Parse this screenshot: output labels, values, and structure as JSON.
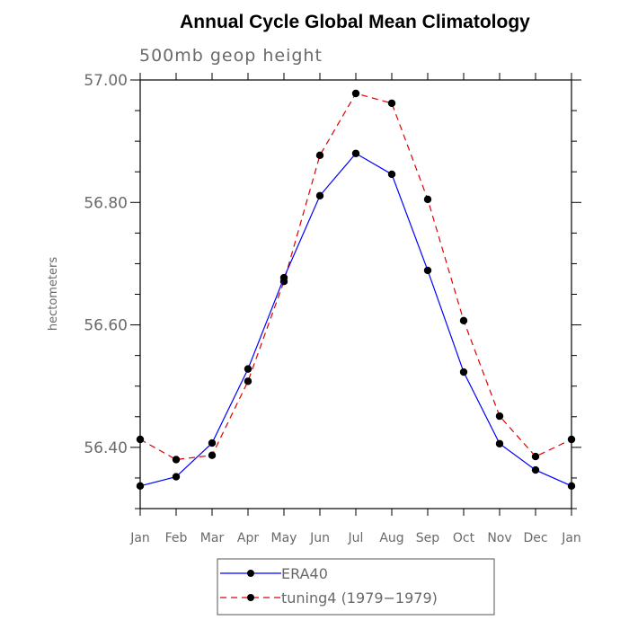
{
  "chart_data": {
    "type": "line",
    "title": "Annual Cycle Global Mean Climatology",
    "subtitle": "500mb geop height",
    "xlabel": "",
    "ylabel": "hectometers",
    "categories": [
      "Jan",
      "Feb",
      "Mar",
      "Apr",
      "May",
      "Jun",
      "Jul",
      "Aug",
      "Sep",
      "Oct",
      "Nov",
      "Dec",
      "Jan"
    ],
    "ylim": [
      56.3,
      57.0
    ],
    "yticks": [
      56.4,
      56.6,
      56.8,
      57.0
    ],
    "ytick_labels": [
      "56.40",
      "56.60",
      "56.80",
      "57.00"
    ],
    "yminor_step": 0.05,
    "grid": false,
    "legend_position": "bottom",
    "series": [
      {
        "name": "ERA40",
        "color": "#0000ff",
        "dashed": false,
        "values": [
          56.337,
          56.352,
          56.407,
          56.528,
          56.677,
          56.811,
          56.88,
          56.846,
          56.689,
          56.523,
          56.406,
          56.363,
          56.337
        ]
      },
      {
        "name": "tuning4 (1979−1979)",
        "color": "#e00000",
        "dashed": true,
        "values": [
          56.413,
          56.38,
          56.387,
          56.508,
          56.671,
          56.877,
          56.978,
          56.962,
          56.805,
          56.607,
          56.451,
          56.385,
          56.413
        ]
      }
    ]
  }
}
